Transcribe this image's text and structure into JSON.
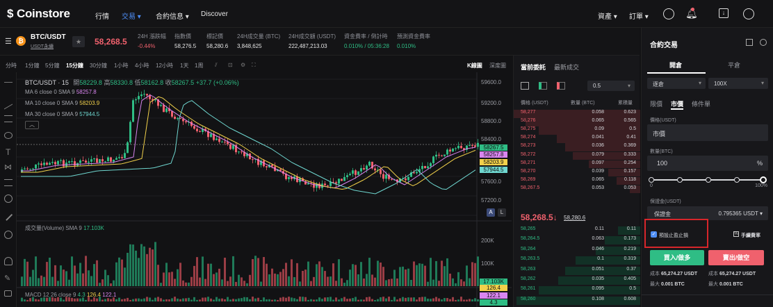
{
  "app": {
    "brand": "Coinstore"
  },
  "nav": {
    "items": [
      "行情",
      "交易",
      "合約信息",
      "Discover"
    ],
    "right": [
      "資產",
      "訂單"
    ]
  },
  "ticker": {
    "symbol": "BTC/USDT",
    "sub": "USDT永續",
    "price": "58,268.5",
    "stats": [
      {
        "label": "24H 漲跌幅",
        "value": "-0.44%"
      },
      {
        "label": "指數價",
        "value": "58,276.5"
      },
      {
        "label": "標記價",
        "value": "58,280.6"
      },
      {
        "label": "24H成交量 (BTC)",
        "value": "3,848,625"
      },
      {
        "label": "24H成交額 (USDT)",
        "value": "222,487,213.03"
      },
      {
        "label": "資金費率 / 倒計時",
        "value": "0.010% / 05:36:28"
      },
      {
        "label": "預測資金費率",
        "value": "0.010%"
      }
    ]
  },
  "timeframes": [
    "分時",
    "1分鐘",
    "5分鐘",
    "15分鐘",
    "30分鐘",
    "1小時",
    "4小時",
    "12小時",
    "1天",
    "1周"
  ],
  "active_timeframe": "15分鐘",
  "chart_tabs": [
    "K線圖",
    "深度圖"
  ],
  "chart": {
    "header": "BTC/USDT · 15",
    "o_label": "開",
    "o": "58229.8",
    "h_label": "高",
    "h": "58330.8",
    "l_label": "低",
    "l": "58162.8",
    "c_label": "收",
    "c": "58267.5",
    "chg": "+37.7 (+0.06%)",
    "ma": [
      {
        "label": "MA 6 close 0 SMA 9",
        "value": "58257.8",
        "color": "#d985f0"
      },
      {
        "label": "MA 10 close 0 SMA 9",
        "value": "58203.9",
        "color": "#f2d14b"
      },
      {
        "label": "MA 30 close 0 SMA 9",
        "value": "57944.5",
        "color": "#6fd7d0"
      }
    ],
    "y_ticks": [
      "59600.0",
      "59200.0",
      "58800.0",
      "58400.0",
      "58000.0",
      "57600.0",
      "57200.0"
    ],
    "badges": [
      {
        "text": "58267.5",
        "color": "#2fbd85"
      },
      {
        "text": "58257.8",
        "color": "#d985f0"
      },
      {
        "text": "58203.9",
        "color": "#f2d14b"
      },
      {
        "text": "57944.5",
        "color": "#6fd7d0"
      }
    ],
    "scale_btns": [
      "A",
      "L"
    ],
    "volume": {
      "label": "成交量(Volume)",
      "sma": "SMA 9",
      "value": "17.103K",
      "ticks": [
        "200K",
        "100K"
      ],
      "badge": "17.103K"
    },
    "macd": {
      "label": "MACD",
      "params": "12 26 close 9",
      "v1": "4.3",
      "v2": "126.4",
      "v3": "122.1",
      "badges": [
        "126.4",
        "122.1",
        "4.3"
      ]
    }
  },
  "book": {
    "tabs": [
      "當前委託",
      "最新成交"
    ],
    "precision": "0.5",
    "headers": [
      "價格 (USDT)",
      "數量 (BTC)",
      "累積量"
    ],
    "asks": [
      [
        "58,277",
        "0.058",
        "0.623"
      ],
      [
        "58,276",
        "0.065",
        "0.565"
      ],
      [
        "58,275",
        "0.09",
        "0.5"
      ],
      [
        "58,274",
        "0.041",
        "0.41"
      ],
      [
        "58,273",
        "0.036",
        "0.369"
      ],
      [
        "58,272",
        "0.079",
        "0.333"
      ],
      [
        "58,271",
        "0.097",
        "0.254"
      ],
      [
        "58,270",
        "0.039",
        "0.157"
      ],
      [
        "58,269",
        "0.065",
        "0.118"
      ],
      [
        "58,267.5",
        "0.053",
        "0.053"
      ]
    ],
    "last": "58,268.5",
    "last_arrow": "↓",
    "mark": "58,280.6",
    "bids": [
      [
        "58,265",
        "0.11",
        "0.11"
      ],
      [
        "58,264.5",
        "0.063",
        "0.173"
      ],
      [
        "58,264",
        "0.046",
        "0.219"
      ],
      [
        "58,263.5",
        "0.1",
        "0.319"
      ],
      [
        "58,263",
        "0.051",
        "0.37"
      ],
      [
        "58,262",
        "0.035",
        "0.405"
      ],
      [
        "58,261",
        "0.095",
        "0.5"
      ],
      [
        "58,260",
        "0.108",
        "0.608"
      ]
    ]
  },
  "panel": {
    "title": "合約交易",
    "tabs": [
      "開倉",
      "平倉"
    ],
    "margin_mode": "逐倉",
    "leverage": "100X",
    "order_types": [
      "限價",
      "市價",
      "條件單"
    ],
    "price_label": "價格(USDT)",
    "price_value": "市價",
    "qty_label": "數量(BTC)",
    "qty_value": "100",
    "qty_unit": "%",
    "slider_min": "0",
    "slider_max": "100%",
    "margin_label": "保證金(USDT)",
    "margin_key": "保證金",
    "margin_value": "0.795365 USDT",
    "tpsl": "預設止盈止損",
    "fee": "手續費率",
    "buy": "買入/做多",
    "sell": "賣出/做空",
    "cost_label": "成本",
    "cost_buy": "65,274.27 USDT",
    "cost_sell": "65,274.27 USDT",
    "max_label": "最大",
    "max_buy": "0.001 BTC",
    "max_sell": "0.001 BTC"
  }
}
